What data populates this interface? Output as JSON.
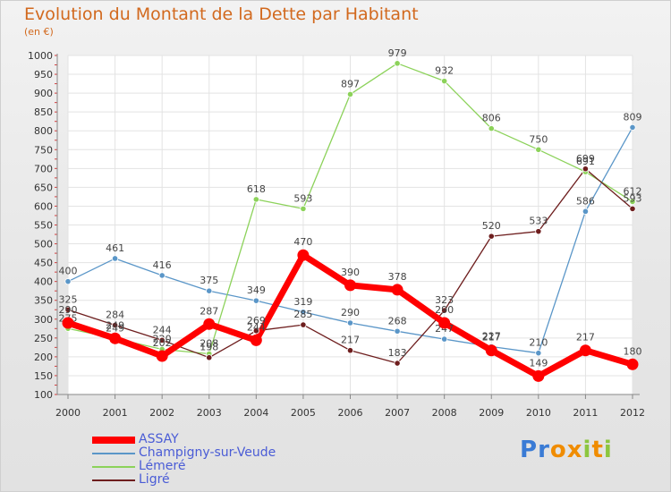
{
  "title": "Evolution du Montant de la Dette par Habitant",
  "subtitle": "(en €)",
  "logo_text": "Proxiti",
  "chart_data": {
    "type": "line",
    "x": [
      "2000",
      "2001",
      "2002",
      "2003",
      "2004",
      "2005",
      "2006",
      "2007",
      "2008",
      "2009",
      "2010",
      "2011",
      "2012"
    ],
    "ylim": [
      100,
      1000
    ],
    "yticks": [
      100,
      150,
      200,
      250,
      300,
      350,
      400,
      450,
      500,
      550,
      600,
      650,
      700,
      750,
      800,
      850,
      900,
      950,
      1000
    ],
    "grid": true,
    "legend_position": "bottom-left",
    "series": [
      {
        "name": "ASSAY",
        "color": "#ff0000",
        "values": [
          290,
          249,
          202,
          287,
          244,
          470,
          390,
          378,
          290,
          217,
          149,
          217,
          180
        ]
      },
      {
        "name": "Champigny-sur-Veude",
        "color": "#5a96c8",
        "values": [
          400,
          461,
          416,
          375,
          349,
          319,
          290,
          268,
          247,
          227,
          210,
          586,
          809
        ]
      },
      {
        "name": "Lémeré",
        "color": "#8cd25a",
        "values": [
          275,
          249,
          220,
          208,
          618,
          593,
          897,
          979,
          932,
          806,
          750,
          691,
          612
        ]
      },
      {
        "name": "Ligré",
        "color": "#6e1e1e",
        "values": [
          325,
          284,
          244,
          198,
          269,
          285,
          217,
          183,
          323,
          520,
          533,
          699,
          593
        ]
      }
    ]
  }
}
